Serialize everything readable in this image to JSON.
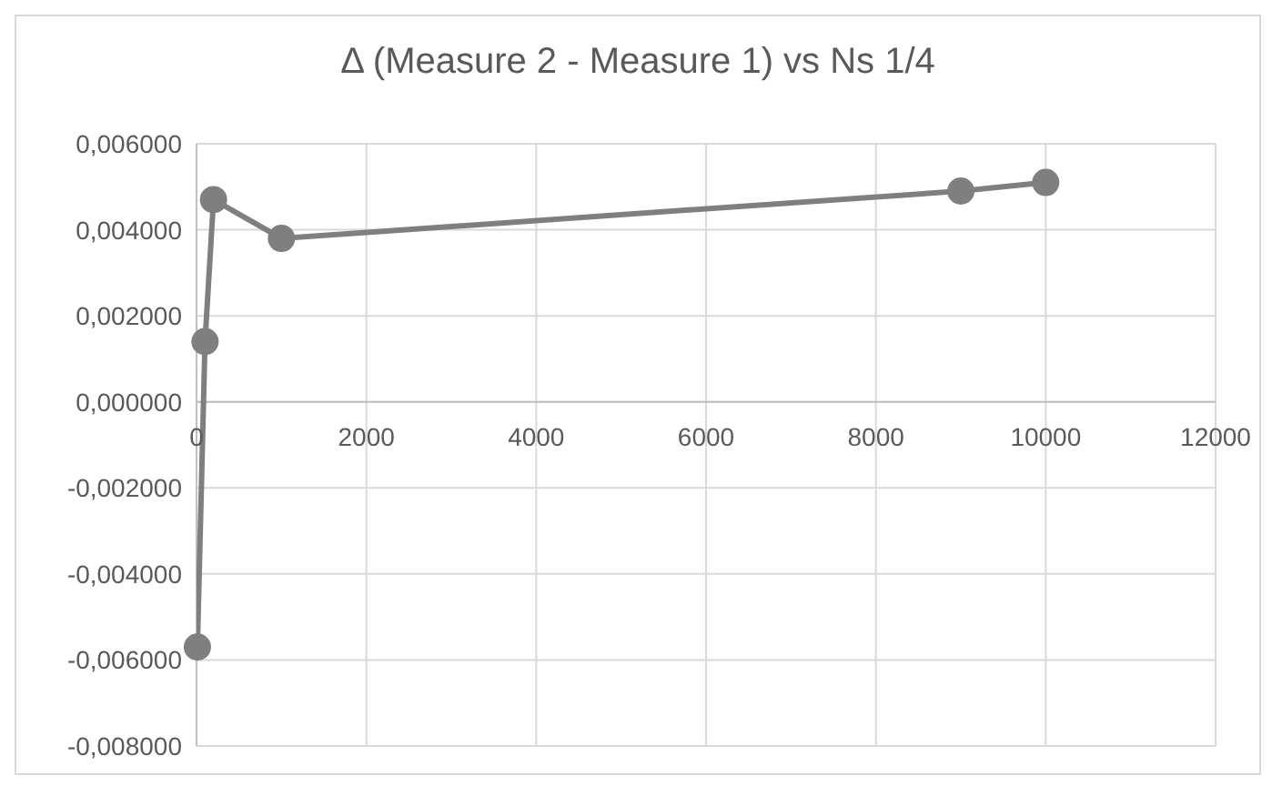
{
  "chart_data": {
    "type": "line",
    "title": "Δ (Measure 2 - Measure 1) vs Ns 1/4",
    "x": [
      10,
      100,
      200,
      1000,
      9000,
      10000
    ],
    "series": [
      {
        "color": "#7f7f7f",
        "values": [
          -0.0057,
          0.0014,
          0.0047,
          0.0038,
          0.0049,
          0.0051
        ]
      }
    ],
    "xlim": [
      0,
      12000
    ],
    "xticks": [
      0,
      2000,
      4000,
      6000,
      8000,
      10000,
      12000
    ],
    "ylim": [
      -0.008,
      0.006
    ],
    "yticks": [
      {
        "value": -0.008,
        "label": "-0,008000"
      },
      {
        "value": -0.006,
        "label": "-0,006000"
      },
      {
        "value": -0.004,
        "label": "-0,004000"
      },
      {
        "value": -0.002,
        "label": "-0,002000"
      },
      {
        "value": 0,
        "label": "0,000000"
      },
      {
        "value": 0.002,
        "label": "0,002000"
      },
      {
        "value": 0.004,
        "label": "0,004000"
      },
      {
        "value": 0.006,
        "label": "0,006000"
      }
    ],
    "grid": true,
    "marker": "circle",
    "legend": false
  }
}
